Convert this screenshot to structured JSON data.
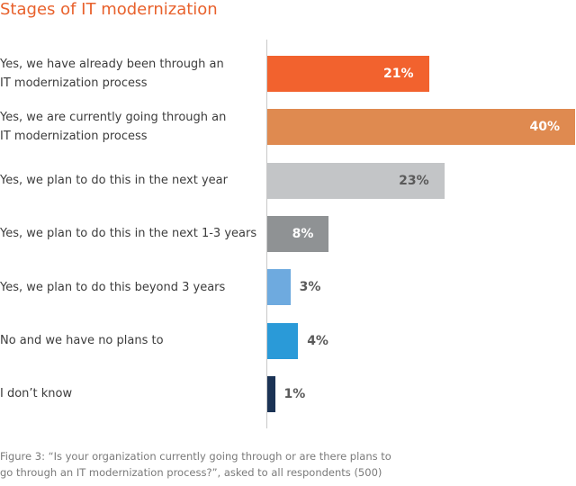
{
  "title": "Stages of IT modernization",
  "caption": "Figure 3: “Is your organization currently going through or are there plans to\ngo through an IT modernization process?”, asked to all respondents (500)",
  "chart_data": {
    "type": "bar",
    "orientation": "horizontal",
    "categories": [
      "Yes, we have already been through an\nIT modernization process",
      "Yes, we are currently going through an\nIT modernization process",
      "Yes, we plan to do this in the next year",
      "Yes, we plan to do this in the next 1-3 years",
      "Yes, we plan to do this beyond 3 years",
      "No and we have no plans to",
      "I don’t know"
    ],
    "values": [
      21,
      40,
      23,
      8,
      3,
      4,
      1
    ],
    "value_labels": [
      "21%",
      "40%",
      "23%",
      "8%",
      "3%",
      "4%",
      "1%"
    ],
    "colors": [
      "#f2622e",
      "#df8a50",
      "#c3c5c7",
      "#8f9294",
      "#6eaadf",
      "#2a9ad8",
      "#1b3355"
    ],
    "label_colors": [
      "#ffffff",
      "#ffffff",
      "#5a5a5a",
      "#ffffff",
      "#5a5a5a",
      "#5a5a5a",
      "#5a5a5a"
    ],
    "label_position": [
      "inside",
      "inside",
      "inside",
      "inside",
      "outside",
      "outside",
      "outside"
    ],
    "xlim": [
      0,
      40
    ],
    "unit": "%",
    "grid": false,
    "legend": "none"
  }
}
